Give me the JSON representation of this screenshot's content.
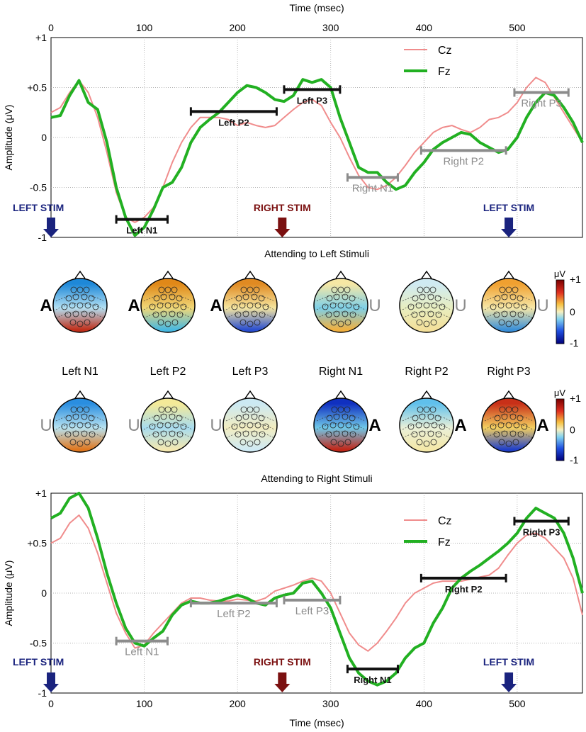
{
  "top_time_label": "Time (msec)",
  "bottom_time_label": "Time (msec)",
  "ylabel": "Amplitude (μV)",
  "colors": {
    "cz": "#f08c8c",
    "fz": "#22b022",
    "left_stim": "#1a237e",
    "right_stim": "#7b1010",
    "bar_black": "#111111",
    "bar_gray": "#8c8c8c"
  },
  "chart_data": [
    {
      "type": "line",
      "title": "",
      "xlabel": "Time (msec)",
      "ylabel": "Amplitude (μV)",
      "xlim": [
        0,
        570
      ],
      "ylim": [
        -1,
        1
      ],
      "x_ticks": [
        "0",
        "100",
        "200",
        "300",
        "400",
        "500"
      ],
      "y_ticks": [
        "+1",
        "+0.5",
        "0",
        "-0.5",
        "-1"
      ],
      "legend": [
        "Cz",
        "Fz"
      ],
      "stim_markers": [
        {
          "label": "LEFT STIM",
          "x": 0,
          "kind": "left"
        },
        {
          "label": "RIGHT STIM",
          "x": 248,
          "kind": "right"
        },
        {
          "label": "LEFT STIM",
          "x": 491,
          "kind": "left"
        }
      ],
      "component_bars": [
        {
          "label": "Left N1",
          "x0": 70,
          "x1": 125,
          "y": -0.82,
          "style": "black"
        },
        {
          "label": "Left P2",
          "x0": 150,
          "x1": 242,
          "y": 0.26,
          "style": "black"
        },
        {
          "label": "Left P3",
          "x0": 250,
          "x1": 310,
          "y": 0.48,
          "style": "black"
        },
        {
          "label": "Right N1",
          "x0": 318,
          "x1": 372,
          "y": -0.4,
          "style": "gray"
        },
        {
          "label": "Right P2",
          "x0": 397,
          "x1": 488,
          "y": -0.13,
          "style": "gray"
        },
        {
          "label": "Right P3",
          "x0": 497,
          "x1": 555,
          "y": 0.45,
          "style": "gray"
        }
      ],
      "series": [
        {
          "name": "Cz",
          "x": [
            0,
            10,
            20,
            30,
            40,
            50,
            60,
            70,
            80,
            90,
            100,
            110,
            120,
            130,
            140,
            150,
            160,
            170,
            180,
            190,
            200,
            210,
            220,
            230,
            240,
            250,
            260,
            270,
            280,
            290,
            300,
            310,
            320,
            330,
            340,
            350,
            360,
            370,
            380,
            390,
            400,
            410,
            420,
            430,
            440,
            450,
            460,
            470,
            480,
            490,
            500,
            510,
            520,
            530,
            540,
            550,
            560,
            570
          ],
          "y": [
            0.25,
            0.3,
            0.45,
            0.57,
            0.45,
            0.2,
            -0.15,
            -0.55,
            -0.8,
            -0.85,
            -0.8,
            -0.7,
            -0.5,
            -0.25,
            -0.05,
            0.1,
            0.2,
            0.2,
            0.2,
            0.18,
            0.12,
            0.15,
            0.12,
            0.1,
            0.12,
            0.2,
            0.28,
            0.35,
            0.38,
            0.32,
            0.15,
            0.0,
            -0.2,
            -0.38,
            -0.5,
            -0.52,
            -0.48,
            -0.4,
            -0.28,
            -0.15,
            -0.05,
            0.05,
            0.1,
            0.12,
            0.08,
            0.05,
            0.1,
            0.18,
            0.2,
            0.25,
            0.35,
            0.5,
            0.6,
            0.55,
            0.4,
            0.25,
            0.1,
            -0.05
          ]
        },
        {
          "name": "Fz",
          "x": [
            0,
            10,
            20,
            30,
            40,
            50,
            60,
            70,
            80,
            90,
            100,
            110,
            120,
            130,
            140,
            150,
            160,
            170,
            180,
            190,
            200,
            210,
            220,
            230,
            240,
            250,
            260,
            270,
            280,
            290,
            300,
            310,
            320,
            330,
            340,
            350,
            360,
            370,
            380,
            390,
            400,
            410,
            420,
            430,
            440,
            450,
            460,
            470,
            480,
            490,
            500,
            510,
            520,
            530,
            540,
            550,
            560,
            570
          ],
          "y": [
            0.2,
            0.22,
            0.42,
            0.57,
            0.35,
            0.28,
            -0.05,
            -0.5,
            -0.8,
            -0.98,
            -0.9,
            -0.72,
            -0.5,
            -0.45,
            -0.3,
            -0.05,
            0.1,
            0.18,
            0.25,
            0.35,
            0.45,
            0.52,
            0.5,
            0.45,
            0.38,
            0.36,
            0.42,
            0.58,
            0.55,
            0.58,
            0.5,
            0.2,
            -0.05,
            -0.3,
            -0.35,
            -0.35,
            -0.45,
            -0.52,
            -0.48,
            -0.35,
            -0.25,
            -0.12,
            -0.05,
            0.0,
            0.05,
            0.03,
            -0.05,
            -0.1,
            -0.15,
            -0.12,
            0.0,
            0.2,
            0.35,
            0.45,
            0.42,
            0.3,
            0.15,
            -0.05
          ]
        }
      ]
    },
    {
      "type": "line",
      "title": "",
      "xlabel": "Time (msec)",
      "ylabel": "Amplitude (μV)",
      "xlim": [
        0,
        570
      ],
      "ylim": [
        -1,
        1
      ],
      "x_ticks": [
        "0",
        "100",
        "200",
        "300",
        "400",
        "500"
      ],
      "y_ticks": [
        "+1",
        "+0.5",
        "0",
        "-0.5",
        "-1"
      ],
      "legend": [
        "Cz",
        "Fz"
      ],
      "stim_markers": [
        {
          "label": "LEFT STIM",
          "x": 0,
          "kind": "left"
        },
        {
          "label": "RIGHT STIM",
          "x": 248,
          "kind": "right"
        },
        {
          "label": "LEFT STIM",
          "x": 491,
          "kind": "left"
        }
      ],
      "component_bars": [
        {
          "label": "Left N1",
          "x0": 70,
          "x1": 125,
          "y": -0.48,
          "style": "gray"
        },
        {
          "label": "Left P2",
          "x0": 150,
          "x1": 242,
          "y": -0.1,
          "style": "gray"
        },
        {
          "label": "Left P3",
          "x0": 250,
          "x1": 310,
          "y": -0.07,
          "style": "gray"
        },
        {
          "label": "Right N1",
          "x0": 318,
          "x1": 372,
          "y": -0.76,
          "style": "black"
        },
        {
          "label": "Right P2",
          "x0": 397,
          "x1": 488,
          "y": 0.15,
          "style": "black"
        },
        {
          "label": "Right P3",
          "x0": 497,
          "x1": 555,
          "y": 0.72,
          "style": "black"
        }
      ],
      "series": [
        {
          "name": "Cz",
          "x": [
            0,
            10,
            20,
            30,
            40,
            50,
            60,
            70,
            80,
            90,
            100,
            110,
            120,
            130,
            140,
            150,
            160,
            170,
            180,
            190,
            200,
            210,
            220,
            230,
            240,
            250,
            260,
            270,
            280,
            290,
            300,
            310,
            320,
            330,
            340,
            350,
            360,
            370,
            380,
            390,
            400,
            410,
            420,
            430,
            440,
            450,
            460,
            470,
            480,
            490,
            500,
            510,
            520,
            530,
            540,
            550,
            560,
            570
          ],
          "y": [
            0.5,
            0.55,
            0.7,
            0.78,
            0.65,
            0.4,
            0.1,
            -0.2,
            -0.4,
            -0.55,
            -0.52,
            -0.4,
            -0.3,
            -0.2,
            -0.1,
            -0.05,
            -0.05,
            -0.07,
            -0.08,
            -0.08,
            -0.06,
            -0.07,
            -0.08,
            -0.05,
            0.02,
            0.05,
            0.08,
            0.12,
            0.15,
            0.12,
            0.0,
            -0.2,
            -0.4,
            -0.52,
            -0.58,
            -0.5,
            -0.38,
            -0.25,
            -0.1,
            0.0,
            0.05,
            0.1,
            0.12,
            0.12,
            0.12,
            0.14,
            0.16,
            0.18,
            0.25,
            0.38,
            0.5,
            0.58,
            0.6,
            0.55,
            0.45,
            0.35,
            0.15,
            -0.22
          ]
        },
        {
          "name": "Fz",
          "x": [
            0,
            10,
            20,
            30,
            40,
            50,
            60,
            70,
            80,
            90,
            100,
            110,
            120,
            130,
            140,
            150,
            160,
            170,
            180,
            190,
            200,
            210,
            220,
            230,
            240,
            250,
            260,
            270,
            280,
            290,
            300,
            310,
            320,
            330,
            340,
            350,
            360,
            370,
            380,
            390,
            400,
            410,
            420,
            430,
            440,
            450,
            460,
            470,
            480,
            490,
            500,
            510,
            520,
            530,
            540,
            550,
            560,
            570
          ],
          "y": [
            0.75,
            0.8,
            0.95,
            1.0,
            0.85,
            0.55,
            0.2,
            -0.1,
            -0.35,
            -0.5,
            -0.53,
            -0.45,
            -0.38,
            -0.22,
            -0.12,
            -0.08,
            -0.1,
            -0.1,
            -0.08,
            -0.05,
            -0.02,
            -0.05,
            -0.1,
            -0.12,
            -0.05,
            -0.02,
            0.0,
            0.1,
            0.12,
            0.0,
            -0.15,
            -0.4,
            -0.65,
            -0.8,
            -0.88,
            -0.92,
            -0.88,
            -0.8,
            -0.65,
            -0.55,
            -0.5,
            -0.3,
            -0.15,
            0.05,
            0.15,
            0.22,
            0.28,
            0.35,
            0.42,
            0.5,
            0.6,
            0.75,
            0.85,
            0.8,
            0.75,
            0.6,
            0.35,
            0.0
          ]
        }
      ]
    }
  ],
  "topomaps": {
    "attend_left_title": "Attending to Left Stimuli",
    "attend_right_title": "Attending to Right Stimuli",
    "labels": [
      "Left N1",
      "Left P2",
      "Left P3",
      "Right N1",
      "Right P2",
      "Right P3"
    ],
    "row1_side_letters": [
      "A",
      "A",
      "A",
      "U",
      "U",
      "U"
    ],
    "row2_side_letters": [
      "U",
      "U",
      "U",
      "A",
      "A",
      "A"
    ],
    "row1_colors": [
      {
        "top": "#1e88d8",
        "mid": "#b3e0f2",
        "bottom": "#c0301c"
      },
      {
        "top": "#e08818",
        "mid": "#f0d878",
        "bottom": "#48b8e0"
      },
      {
        "top": "#e08a22",
        "mid": "#f5e6a0",
        "bottom": "#2a4fd0"
      },
      {
        "top": "#f6e7a4",
        "mid": "#7ed0e8",
        "bottom": "#f0b040"
      },
      {
        "top": "#cfeaf2",
        "mid": "#e8eec0",
        "bottom": "#f4e09a"
      },
      {
        "top": "#f0a030",
        "mid": "#f6e8a8",
        "bottom": "#3a8fd8"
      }
    ],
    "row2_colors": [
      {
        "top": "#2a8ee0",
        "mid": "#b7e2f0",
        "bottom": "#e07820"
      },
      {
        "top": "#f4ea98",
        "mid": "#a8dcef",
        "bottom": "#f4e8b0"
      },
      {
        "top": "#cbe9f3",
        "mid": "#f2ecc0",
        "bottom": "#cfeaf4"
      },
      {
        "top": "#1030c0",
        "mid": "#70c8e8",
        "bottom": "#c0281a"
      },
      {
        "top": "#60c0ec",
        "mid": "#eaf0d8",
        "bottom": "#f4e8a8"
      },
      {
        "top": "#c83018",
        "mid": "#f4d060",
        "bottom": "#2040c8"
      }
    ],
    "colorbar_unit": "μV",
    "colorbar_ticks": [
      "+1",
      "0",
      "-1"
    ]
  }
}
